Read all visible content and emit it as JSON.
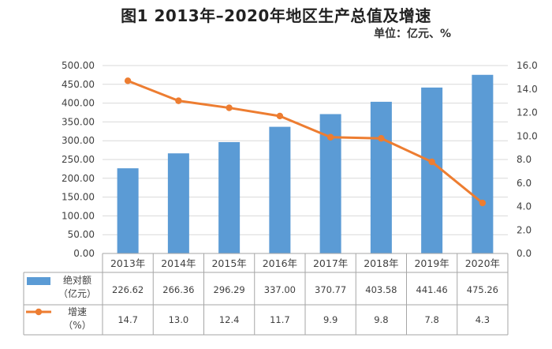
{
  "title": "图1  2013年–2020年地区生产总值及增速",
  "unit_label": "单位：亿元、%",
  "colors": {
    "bar": "#5B9BD5",
    "line": "#ED7D31",
    "grid": "#D9D9D9",
    "axis": "#A6A6A6"
  },
  "chart_data": {
    "type": "bar+line",
    "categories": [
      "2013年",
      "2014年",
      "2015年",
      "2016年",
      "2017年",
      "2018年",
      "2019年",
      "2020年"
    ],
    "series": [
      {
        "name": "绝对额（亿元）",
        "name_lines": [
          "绝对额",
          "（亿元）"
        ],
        "type": "bar",
        "axis": "left",
        "values": [
          226.62,
          266.36,
          296.29,
          337.0,
          370.77,
          403.58,
          441.46,
          475.26
        ],
        "labels": [
          "226.62",
          "266.36",
          "296.29",
          "337.00",
          "370.77",
          "403.58",
          "441.46",
          "475.26"
        ]
      },
      {
        "name": "增速（%）",
        "name_lines": [
          "增速",
          "（%）"
        ],
        "type": "line",
        "axis": "right",
        "values": [
          14.7,
          13.0,
          12.4,
          11.7,
          9.9,
          9.8,
          7.8,
          4.3
        ],
        "labels": [
          "14.7",
          "13.0",
          "12.4",
          "11.7",
          "9.9",
          "9.8",
          "7.8",
          "4.3"
        ]
      }
    ],
    "y_left": {
      "range": [
        0,
        500
      ],
      "ticks": [
        "0.00",
        "50.00",
        "100.00",
        "150.00",
        "200.00",
        "250.00",
        "300.00",
        "350.00",
        "400.00",
        "450.00",
        "500.00"
      ]
    },
    "y_right": {
      "range": [
        0,
        16
      ],
      "ticks": [
        "0.0",
        "2.0",
        "4.0",
        "6.0",
        "8.0",
        "10.0",
        "12.0",
        "14.0",
        "16.0"
      ]
    },
    "grid": true,
    "legend": "data-table"
  }
}
